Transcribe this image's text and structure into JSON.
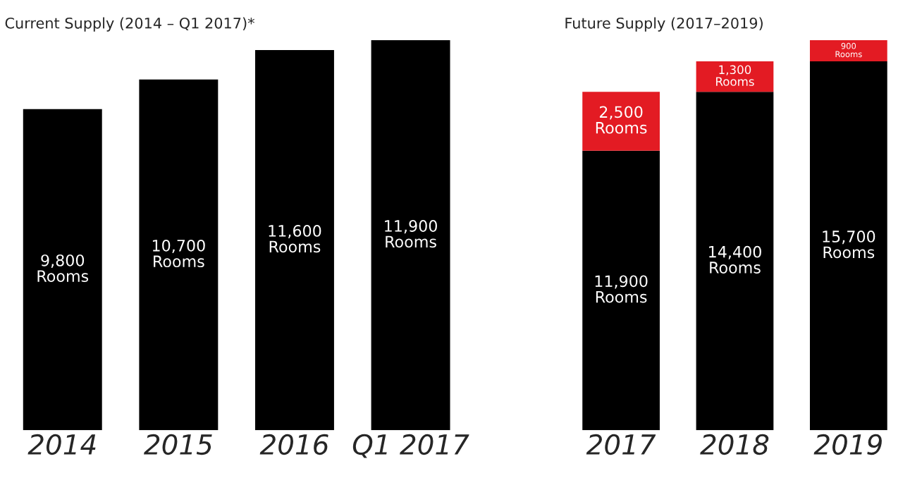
{
  "chart_data": [
    {
      "type": "bar",
      "title": "Current Supply (2014 – Q1 2017)*",
      "categories": [
        "2014",
        "2015",
        "2016",
        "Q1 2017"
      ],
      "tick_labels": "x",
      "series": [
        {
          "color": "#000000",
          "values": [
            9800,
            10700,
            11600,
            11900
          ],
          "value_labels": [
            "9,800\nRooms",
            "10,700\nRooms",
            "11,600\nRooms",
            "11,900\nRooms"
          ]
        }
      ]
    },
    {
      "type": "bar",
      "title": "Future Supply (2017–2019)",
      "categories": [
        "2017",
        "2018",
        "2019"
      ],
      "stacked": true,
      "tick_labels": "x",
      "series": [
        {
          "color": "#000000",
          "values": [
            11900,
            14400,
            15700
          ],
          "value_labels": [
            "11,900\nRooms",
            "14,400\nRooms",
            "15,700\nRooms"
          ]
        },
        {
          "color": "#e31b23",
          "values": [
            2500,
            1300,
            900
          ],
          "value_labels": [
            "2,500\nRooms",
            "1,300\nRooms",
            "900\nRooms"
          ]
        }
      ]
    }
  ]
}
